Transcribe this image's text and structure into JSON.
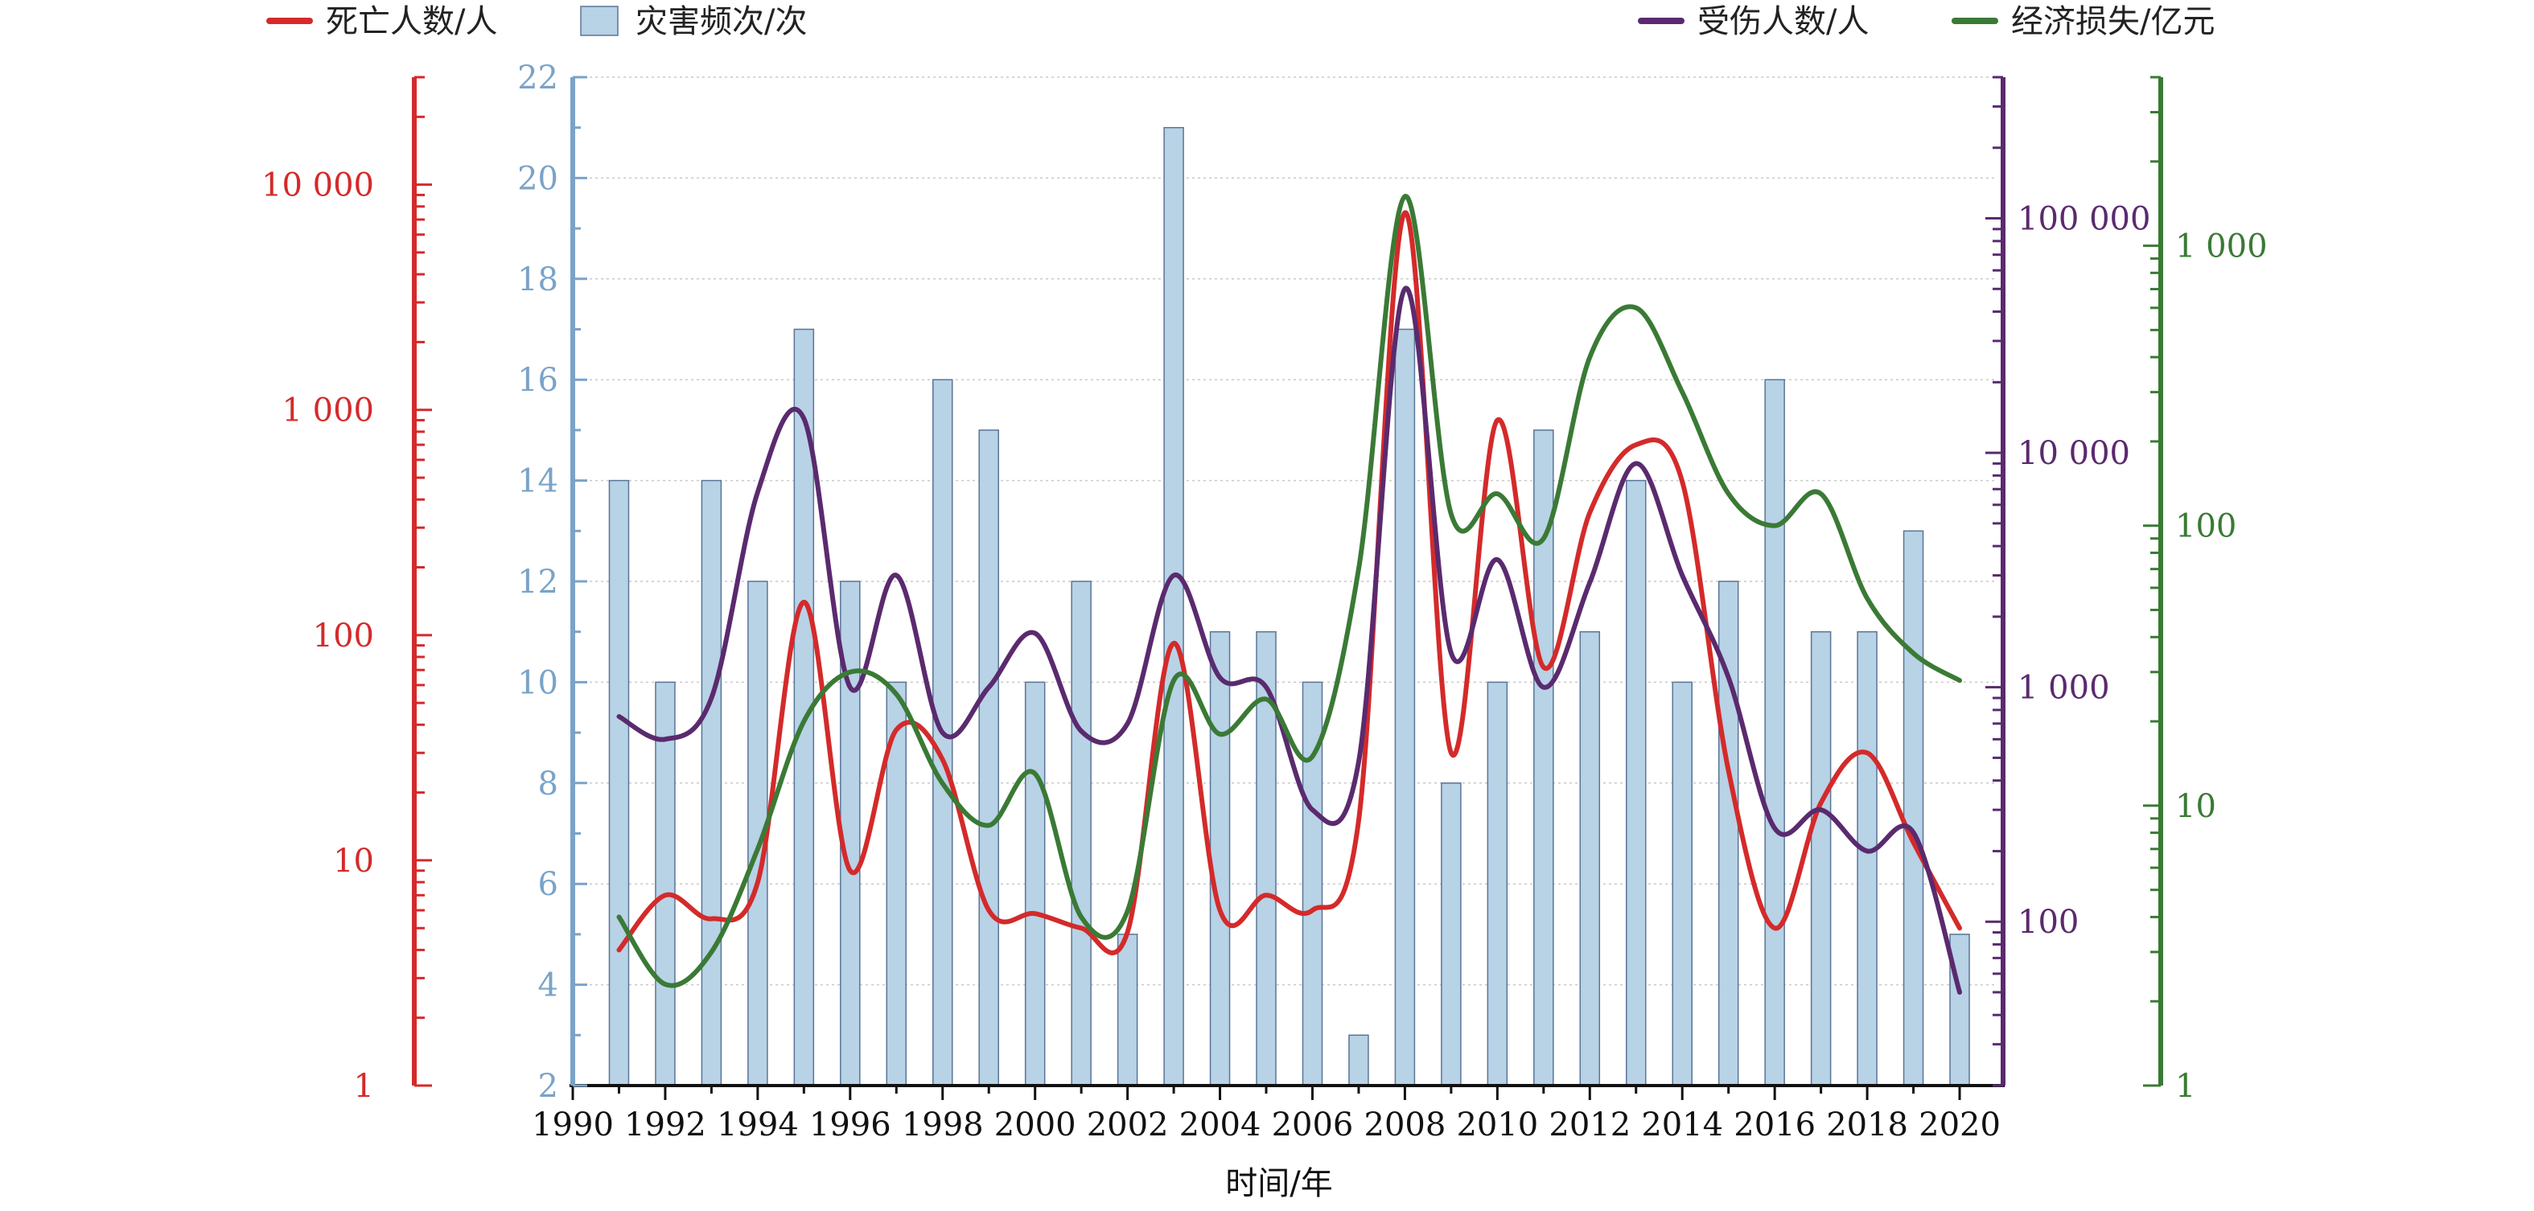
{
  "chart_data": {
    "type": "bar",
    "xlabel": "时间/年",
    "x_ticks": [
      1990,
      1992,
      1994,
      1996,
      1998,
      2000,
      2002,
      2004,
      2006,
      2008,
      2010,
      2012,
      2014,
      2016,
      2018,
      2020
    ],
    "xlim": [
      1990,
      2020.8
    ],
    "years": [
      1991,
      1992,
      1993,
      1994,
      1995,
      1996,
      1997,
      1998,
      1999,
      2000,
      2001,
      2002,
      2003,
      2004,
      2005,
      2006,
      2007,
      2008,
      2009,
      2010,
      2011,
      2012,
      2013,
      2014,
      2015,
      2016,
      2017,
      2018,
      2019,
      2020
    ],
    "legend": {
      "left": [
        {
          "label": "死亡人数/人",
          "kind": "line",
          "color": "#d42a2a"
        },
        {
          "label": "灾害频次/次",
          "kind": "bar",
          "color": "#b8d2e6"
        }
      ],
      "right": [
        {
          "label": "受伤人数/人",
          "kind": "line",
          "color": "#5a2a6e"
        },
        {
          "label": "经济损失/亿元",
          "kind": "line",
          "color": "#3a7a35"
        }
      ]
    },
    "series": [
      {
        "name": "灾害频次/次",
        "kind": "bar",
        "axis": "freq",
        "color": "#b8d2e6",
        "edge": "#5a7596",
        "values": [
          14,
          10,
          14,
          12,
          17,
          12,
          10,
          16,
          15,
          10,
          12,
          5,
          21,
          11,
          11,
          10,
          3,
          17,
          8,
          10,
          15,
          11,
          14,
          10,
          12,
          16,
          11,
          11,
          13,
          5
        ]
      },
      {
        "name": "死亡人数/人",
        "kind": "line",
        "axis": "deaths",
        "color": "#d42a2a",
        "values": [
          4,
          7,
          5.5,
          8,
          140,
          9,
          38,
          28,
          6,
          5.8,
          5,
          4.8,
          92,
          6,
          7,
          6,
          15,
          7500,
          30,
          900,
          72,
          350,
          700,
          480,
          25,
          5,
          18,
          30,
          12,
          5
        ]
      },
      {
        "name": "受伤人数/人",
        "kind": "line",
        "axis": "injured",
        "color": "#5a2a6e",
        "values": [
          750,
          600,
          900,
          6800,
          14000,
          1000,
          3000,
          640,
          1000,
          1700,
          650,
          700,
          3000,
          1100,
          1000,
          300,
          480,
          50000,
          1400,
          3500,
          1000,
          2800,
          9000,
          3000,
          1100,
          250,
          300,
          200,
          240,
          50
        ]
      },
      {
        "name": "经济损失/亿元",
        "kind": "line",
        "axis": "loss",
        "color": "#3a7a35",
        "values": [
          4,
          2.3,
          3,
          7,
          20,
          30,
          25,
          12,
          8.5,
          13,
          4,
          4.2,
          28,
          18,
          24,
          15,
          70,
          1500,
          110,
          130,
          90,
          400,
          600,
          300,
          130,
          100,
          130,
          55,
          35,
          28
        ]
      }
    ],
    "axes": {
      "freq": {
        "scale": "linear",
        "range": [
          2,
          22
        ],
        "ticks": [
          2,
          4,
          6,
          8,
          10,
          12,
          14,
          16,
          18,
          20,
          22
        ],
        "tick_labels": [
          "2",
          "4",
          "6",
          "8",
          "10",
          "12",
          "14",
          "16",
          "18",
          "20",
          "22"
        ],
        "color": "#7aa3c8"
      },
      "deaths": {
        "scale": "log",
        "range": [
          1,
          30000
        ],
        "ticks": [
          1,
          10,
          100,
          1000,
          10000
        ],
        "tick_labels": [
          "1",
          "10",
          "100",
          "1 000",
          "10 000"
        ],
        "color": "#d42a2a"
      },
      "injured": {
        "scale": "log",
        "range": [
          20,
          400000
        ],
        "ticks": [
          100,
          1000,
          10000,
          100000
        ],
        "tick_labels": [
          "100",
          "1 000",
          "10 000",
          "100 000"
        ],
        "color": "#5a2a6e"
      },
      "loss": {
        "scale": "log",
        "range": [
          1,
          4000
        ],
        "ticks": [
          1,
          10,
          100,
          1000
        ],
        "tick_labels": [
          "1",
          "10",
          "100",
          "1 000"
        ],
        "color": "#3a7a35"
      }
    },
    "grid": true
  }
}
